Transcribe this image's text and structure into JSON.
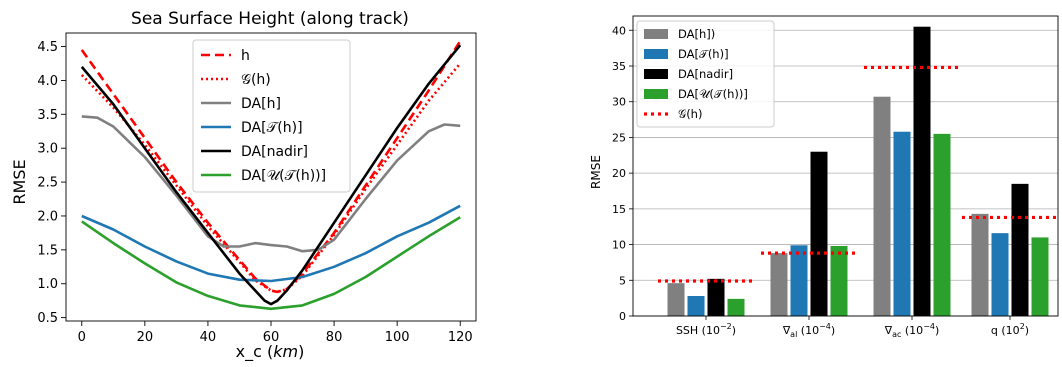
{
  "chart_data": [
    {
      "type": "line",
      "title": "Sea Surface Height (along track)",
      "xlabel": "x_c (km)",
      "xlabel_plain": "x_c (",
      "xlabel_unit": "km",
      "xlabel_close": ")",
      "ylabel": "RMSE",
      "xlim": [
        -5,
        125
      ],
      "ylim": [
        0.45,
        4.7
      ],
      "xticks": [
        0,
        20,
        40,
        60,
        80,
        100,
        120
      ],
      "yticks": [
        0.5,
        1.0,
        1.5,
        2.0,
        2.5,
        3.0,
        3.5,
        4.0,
        4.5
      ],
      "xtick_labels": [
        "0",
        "20",
        "40",
        "60",
        "80",
        "100",
        "120"
      ],
      "ytick_labels": [
        "0.5",
        "1.0",
        "1.5",
        "2.0",
        "2.5",
        "3.0",
        "3.5",
        "4.0",
        "4.5"
      ],
      "grid": false,
      "legend_position": "top-center",
      "series": [
        {
          "name": "h",
          "color": "#ff0000",
          "style": "dashed",
          "x": [
            0,
            10,
            20,
            30,
            40,
            50,
            55,
            60,
            62,
            65,
            70,
            75,
            80,
            90,
            100,
            110,
            120
          ],
          "y": [
            4.45,
            3.8,
            3.15,
            2.5,
            1.9,
            1.35,
            1.08,
            0.9,
            0.88,
            0.92,
            1.15,
            1.45,
            1.75,
            2.45,
            3.15,
            3.85,
            4.58
          ]
        },
        {
          "name": "𝒢(h)",
          "color": "#ff0000",
          "style": "dotted",
          "x": [
            0,
            10,
            20,
            30,
            40,
            50,
            55,
            60,
            62,
            65,
            70,
            75,
            80,
            90,
            100,
            110,
            120
          ],
          "y": [
            4.08,
            3.6,
            3.05,
            2.45,
            1.85,
            1.32,
            1.05,
            0.9,
            0.88,
            0.92,
            1.12,
            1.42,
            1.72,
            2.4,
            3.05,
            3.7,
            4.25
          ]
        },
        {
          "name": "DA[h]",
          "color": "#808080",
          "style": "solid",
          "x": [
            0,
            5,
            10,
            20,
            30,
            40,
            45,
            50,
            55,
            60,
            65,
            70,
            75,
            80,
            90,
            100,
            110,
            115,
            120
          ],
          "y": [
            3.47,
            3.45,
            3.32,
            2.87,
            2.3,
            1.7,
            1.55,
            1.55,
            1.6,
            1.57,
            1.55,
            1.48,
            1.5,
            1.65,
            2.25,
            2.82,
            3.25,
            3.35,
            3.33
          ]
        },
        {
          "name": "DA[𝒯(h)]",
          "color": "#1f77b4",
          "style": "solid",
          "x": [
            0,
            10,
            20,
            30,
            40,
            50,
            60,
            70,
            80,
            90,
            100,
            110,
            120
          ],
          "y": [
            2.0,
            1.8,
            1.55,
            1.33,
            1.15,
            1.06,
            1.04,
            1.1,
            1.25,
            1.45,
            1.7,
            1.9,
            2.15
          ]
        },
        {
          "name": "DA[nadir]",
          "color": "#000000",
          "style": "solid",
          "x": [
            0,
            10,
            20,
            30,
            40,
            50,
            55,
            58,
            60,
            62,
            65,
            70,
            80,
            90,
            100,
            110,
            120
          ],
          "y": [
            4.2,
            3.65,
            3.0,
            2.35,
            1.75,
            1.15,
            0.9,
            0.75,
            0.7,
            0.75,
            0.9,
            1.2,
            1.9,
            2.6,
            3.3,
            3.95,
            4.52
          ]
        },
        {
          "name": "DA[𝒰(𝒯(h))]",
          "color": "#2ca02c",
          "style": "solid",
          "x": [
            0,
            10,
            20,
            30,
            40,
            50,
            60,
            70,
            80,
            90,
            100,
            110,
            120
          ],
          "y": [
            1.92,
            1.6,
            1.3,
            1.02,
            0.82,
            0.68,
            0.63,
            0.68,
            0.85,
            1.1,
            1.4,
            1.7,
            1.98
          ]
        }
      ]
    },
    {
      "type": "bar",
      "title": "",
      "xlabel": "",
      "ylabel": "RMSE",
      "ylim": [
        0,
        42
      ],
      "yticks": [
        0,
        5,
        10,
        15,
        20,
        25,
        30,
        35,
        40
      ],
      "ytick_labels": [
        "0",
        "5",
        "10",
        "15",
        "20",
        "25",
        "30",
        "35",
        "40"
      ],
      "grid": true,
      "grid_axis": "y",
      "legend_position": "top-left",
      "categories": [
        {
          "base": "SSH (10",
          "sub": "",
          "exp": "−2",
          "close": ")"
        },
        {
          "base": "∇",
          "sub": "al",
          "mid": " (10",
          "exp": "−4",
          "close": ")"
        },
        {
          "base": "∇",
          "sub": "ac",
          "mid": " (10",
          "exp": "−4",
          "close": ")"
        },
        {
          "base": "q (10",
          "sub": "",
          "exp": "2",
          "close": ")"
        }
      ],
      "series": [
        {
          "name": "DA[h])",
          "color": "#808080",
          "values": [
            4.6,
            8.8,
            30.7,
            14.3
          ]
        },
        {
          "name": "DA[𝒯(h)]",
          "color": "#1f77b4",
          "values": [
            2.8,
            9.9,
            25.8,
            11.6
          ]
        },
        {
          "name": "DA[nadir]",
          "color": "#000000",
          "values": [
            5.2,
            23.0,
            40.5,
            18.5
          ]
        },
        {
          "name": "DA[𝒰(𝒯(h))]",
          "color": "#2ca02c",
          "values": [
            2.4,
            9.8,
            25.5,
            11.0
          ]
        }
      ],
      "reference": {
        "name": "𝒢(h)",
        "color": "#ff0000",
        "style": "dotted",
        "values": [
          4.9,
          8.8,
          34.8,
          13.8
        ]
      }
    }
  ]
}
